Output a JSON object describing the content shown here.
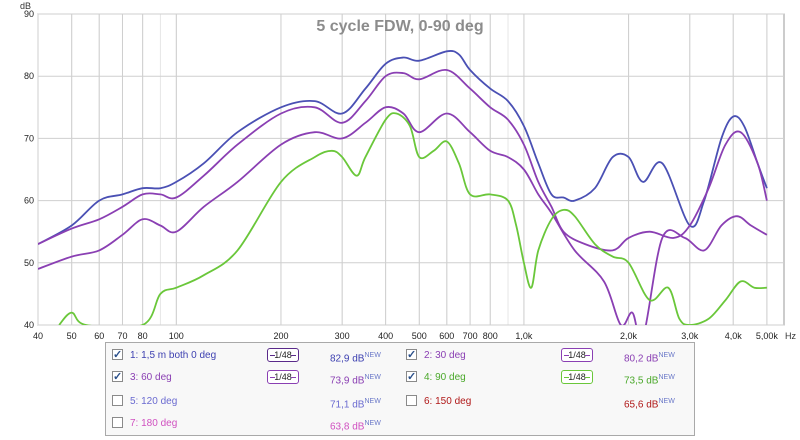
{
  "chart_data": {
    "type": "line",
    "title": "5 cycle FDW, 0-90 deg",
    "xlabel": "Hz",
    "ylabel": "dB",
    "x_scale": "log",
    "xlim": [
      40,
      5600
    ],
    "ylim": [
      40,
      90
    ],
    "grid": true,
    "x_ticks": [
      {
        "v": 40,
        "label": "40"
      },
      {
        "v": 50,
        "label": "50"
      },
      {
        "v": 60,
        "label": "60"
      },
      {
        "v": 70,
        "label": "70"
      },
      {
        "v": 80,
        "label": "80"
      },
      {
        "v": 100,
        "label": "100"
      },
      {
        "v": 200,
        "label": "200"
      },
      {
        "v": 300,
        "label": "300"
      },
      {
        "v": 400,
        "label": "400"
      },
      {
        "v": 500,
        "label": "500"
      },
      {
        "v": 600,
        "label": "600"
      },
      {
        "v": 700,
        "label": "700"
      },
      {
        "v": 800,
        "label": "800"
      },
      {
        "v": 1000,
        "label": "1,0k"
      },
      {
        "v": 2000,
        "label": "2,0k"
      },
      {
        "v": 3000,
        "label": "3,0k"
      },
      {
        "v": 4000,
        "label": "4,0k"
      },
      {
        "v": 5000,
        "label": "5,00k"
      }
    ],
    "y_ticks": [
      40,
      50,
      60,
      70,
      80,
      90
    ],
    "series": [
      {
        "name": "1: 1,5 m both 0 deg",
        "color": "#4a50b4",
        "points": [
          [
            40,
            53
          ],
          [
            50,
            56
          ],
          [
            60,
            60
          ],
          [
            70,
            61
          ],
          [
            80,
            62
          ],
          [
            90,
            62
          ],
          [
            100,
            63
          ],
          [
            120,
            66
          ],
          [
            150,
            71
          ],
          [
            200,
            75
          ],
          [
            250,
            76
          ],
          [
            300,
            74
          ],
          [
            350,
            78
          ],
          [
            400,
            82
          ],
          [
            450,
            83
          ],
          [
            500,
            82.5
          ],
          [
            600,
            84
          ],
          [
            650,
            83.5
          ],
          [
            700,
            81
          ],
          [
            800,
            78
          ],
          [
            900,
            76
          ],
          [
            1000,
            72
          ],
          [
            1100,
            66
          ],
          [
            1200,
            61
          ],
          [
            1300,
            60.5
          ],
          [
            1400,
            60
          ],
          [
            1600,
            62
          ],
          [
            1800,
            67
          ],
          [
            2000,
            67
          ],
          [
            2200,
            63
          ],
          [
            2500,
            66
          ],
          [
            3000,
            56
          ],
          [
            3300,
            60
          ],
          [
            3700,
            70
          ],
          [
            4000,
            73.5
          ],
          [
            4300,
            72
          ],
          [
            4700,
            66
          ],
          [
            5000,
            62
          ]
        ]
      },
      {
        "name": "2: 30 deg",
        "color": "#8a3fb3",
        "points": [
          [
            40,
            53
          ],
          [
            50,
            55.5
          ],
          [
            60,
            57
          ],
          [
            70,
            59
          ],
          [
            80,
            61
          ],
          [
            90,
            61
          ],
          [
            100,
            60.5
          ],
          [
            120,
            64
          ],
          [
            150,
            69
          ],
          [
            200,
            74
          ],
          [
            250,
            75
          ],
          [
            300,
            72.5
          ],
          [
            350,
            76
          ],
          [
            400,
            80
          ],
          [
            450,
            80.5
          ],
          [
            500,
            79.5
          ],
          [
            600,
            81
          ],
          [
            700,
            78
          ],
          [
            800,
            75
          ],
          [
            900,
            73
          ],
          [
            1000,
            69
          ],
          [
            1100,
            63
          ],
          [
            1200,
            59
          ],
          [
            1300,
            55
          ],
          [
            1500,
            53
          ],
          [
            1800,
            52
          ],
          [
            2000,
            54
          ],
          [
            2300,
            55
          ],
          [
            2700,
            54
          ],
          [
            3000,
            56
          ],
          [
            3400,
            62
          ],
          [
            3800,
            69
          ],
          [
            4200,
            71
          ],
          [
            4700,
            66
          ],
          [
            5000,
            60
          ]
        ]
      },
      {
        "name": "3: 60 deg",
        "color": "#8a3fb3",
        "points": [
          [
            40,
            49
          ],
          [
            50,
            51
          ],
          [
            60,
            52
          ],
          [
            70,
            54.5
          ],
          [
            80,
            57
          ],
          [
            90,
            56
          ],
          [
            100,
            55
          ],
          [
            120,
            59
          ],
          [
            150,
            63
          ],
          [
            200,
            69
          ],
          [
            250,
            71
          ],
          [
            300,
            70
          ],
          [
            350,
            72.5
          ],
          [
            400,
            75
          ],
          [
            450,
            74
          ],
          [
            500,
            71
          ],
          [
            600,
            74
          ],
          [
            700,
            71
          ],
          [
            800,
            68
          ],
          [
            900,
            67
          ],
          [
            1000,
            65
          ],
          [
            1100,
            61
          ],
          [
            1200,
            58
          ],
          [
            1400,
            52
          ],
          [
            1700,
            47
          ],
          [
            1900,
            40
          ],
          [
            2050,
            42
          ],
          [
            2200,
            38
          ],
          [
            2500,
            54
          ],
          [
            2900,
            54
          ],
          [
            3300,
            52
          ],
          [
            3700,
            56
          ],
          [
            4100,
            57.5
          ],
          [
            4500,
            56
          ],
          [
            5000,
            54.5
          ]
        ]
      },
      {
        "name": "4: 90 deg",
        "color": "#6ac73a",
        "points": [
          [
            46,
            40
          ],
          [
            50,
            42
          ],
          [
            55,
            40
          ],
          [
            80,
            40
          ],
          [
            90,
            45
          ],
          [
            100,
            46
          ],
          [
            120,
            48
          ],
          [
            150,
            52
          ],
          [
            200,
            63
          ],
          [
            250,
            67
          ],
          [
            280,
            68
          ],
          [
            300,
            67
          ],
          [
            330,
            64
          ],
          [
            350,
            67
          ],
          [
            400,
            73
          ],
          [
            430,
            74
          ],
          [
            470,
            72
          ],
          [
            500,
            67
          ],
          [
            550,
            68
          ],
          [
            600,
            69.5
          ],
          [
            650,
            66
          ],
          [
            700,
            61
          ],
          [
            800,
            61
          ],
          [
            900,
            60
          ],
          [
            950,
            56
          ],
          [
            1000,
            50
          ],
          [
            1050,
            46
          ],
          [
            1100,
            52
          ],
          [
            1200,
            57
          ],
          [
            1300,
            58.5
          ],
          [
            1400,
            57.5
          ],
          [
            1600,
            53
          ],
          [
            1800,
            51
          ],
          [
            2000,
            50
          ],
          [
            2300,
            44
          ],
          [
            2600,
            46
          ],
          [
            2800,
            41
          ],
          [
            3000,
            40
          ],
          [
            3400,
            41
          ],
          [
            3800,
            44
          ],
          [
            4200,
            47
          ],
          [
            4600,
            46
          ],
          [
            5000,
            46
          ]
        ]
      }
    ]
  },
  "legend": {
    "items": [
      {
        "label": "1: 1,5 m both 0 deg",
        "value": "82,9 dB",
        "sup": "NEW",
        "checked": true,
        "smoothing": "1/48",
        "color": "#3c3fb0",
        "smooth_color": "#5a2a8a"
      },
      {
        "label": "2: 30 deg",
        "value": "80,2 dB",
        "sup": "NEW",
        "checked": true,
        "smoothing": "1/48",
        "color": "#8a3fb3",
        "smooth_color": "#8a3fb3"
      },
      {
        "label": "3: 60 deg",
        "value": "73,9 dB",
        "sup": "NEW",
        "checked": true,
        "smoothing": "1/48",
        "color": "#8a3fb3",
        "smooth_color": "#8a3fb3"
      },
      {
        "label": "4: 90 deg",
        "value": "73,5 dB",
        "sup": "NEW",
        "checked": true,
        "smoothing": "1/48",
        "color": "#4aa82a",
        "smooth_color": "#6ac73a"
      },
      {
        "label": "5: 120 deg",
        "value": "71,1 dB",
        "sup": "NEW",
        "checked": false,
        "smoothing": "",
        "color": "#6a6ad0",
        "smooth_color": ""
      },
      {
        "label": "6: 150 deg",
        "value": "65,6 dB",
        "sup": "NEW",
        "checked": false,
        "smoothing": "",
        "color": "#b01818",
        "smooth_color": ""
      },
      {
        "label": "7: 180 deg",
        "value": "63,8 dB",
        "sup": "NEW",
        "checked": false,
        "smoothing": "",
        "color": "#d050c0",
        "smooth_color": ""
      }
    ]
  }
}
